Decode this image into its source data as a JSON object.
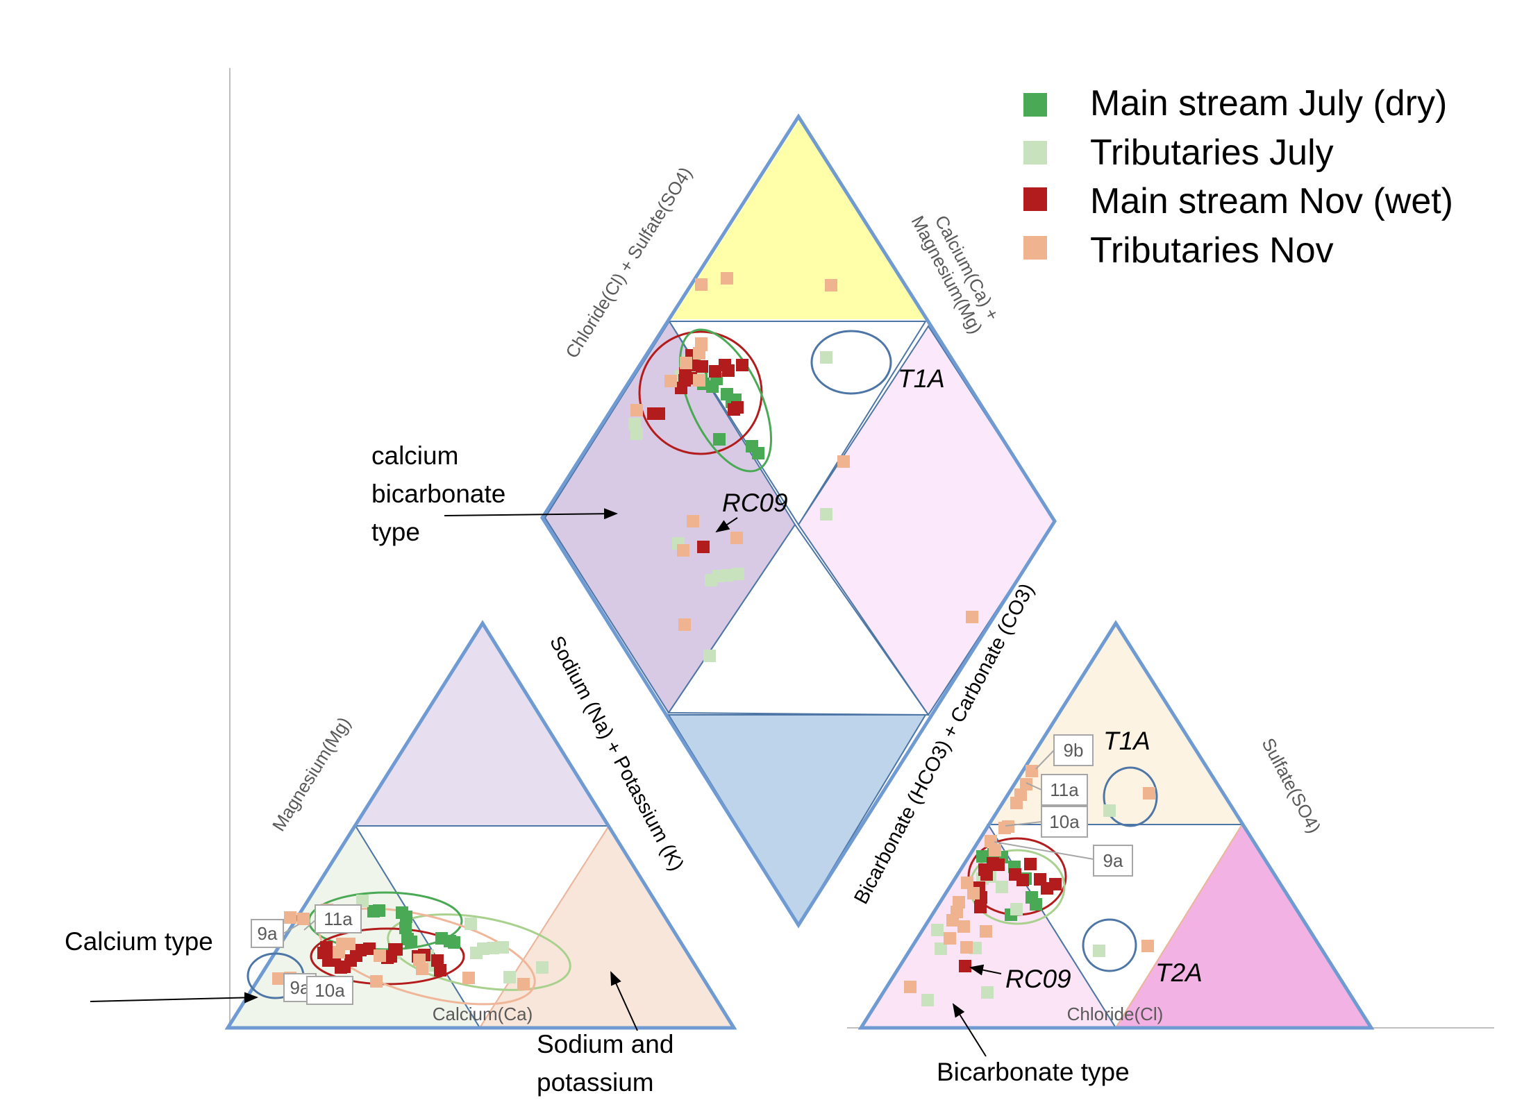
{
  "chart_data": {
    "type": "scatter",
    "title": "",
    "legend": {
      "position": "top-right",
      "items": [
        {
          "name": "Main stream July (dry)",
          "color": "#4aa955"
        },
        {
          "name": "Tributaries July",
          "color": "#c8e2bd"
        },
        {
          "name": "Main stream Nov (wet)",
          "color": "#b31c1c"
        },
        {
          "name": "Tributaries Nov",
          "color": "#efb38f"
        }
      ]
    },
    "axis_labels": {
      "diamond_left": "Chloride(Cl) + Sulfate(SO4)",
      "diamond_right_line1": "Calcium(Ca) +",
      "diamond_right_line2": "Magnesium(Mg)",
      "cation_left": "Magnesium(Mg)",
      "cation_right": "Sodium (Na) + Potassium (K)",
      "cation_bottom": "Calcium(Ca)",
      "anion_left": "Bicarbonate (HCO3) + Carbonate (CO3)",
      "anion_right": "Sulfate(SO4)",
      "anion_bottom": "Chloride(Cl)"
    },
    "annotations": {
      "calcium_bicarbonate": [
        "calcium",
        "bicarbonate",
        "type"
      ],
      "calcium_type": "Calcium type",
      "sodium_potassium": [
        "Sodium and",
        "potassium"
      ],
      "bicarbonate_type": "Bicarbonate type",
      "t1a": "T1A",
      "t2a": "T2A",
      "rc09": "RC09"
    },
    "site_labels": {
      "cation": [
        "9a",
        "11a",
        "9a",
        "10a"
      ],
      "anion": [
        "9b",
        "11a",
        "10a",
        "9a"
      ]
    },
    "series": [
      {
        "name": "Main stream July (dry)",
        "cation_points": [
          [
            538,
            1313
          ],
          [
            546,
            1312
          ],
          [
            579,
            1315
          ],
          [
            585,
            1321
          ],
          [
            584,
            1337
          ],
          [
            587,
            1353
          ],
          [
            592,
            1357
          ],
          [
            636,
            1352
          ],
          [
            648,
            1356
          ],
          [
            654,
            1358
          ]
        ],
        "anion_points": [
          [
            1415,
            1234
          ],
          [
            1431,
            1231
          ],
          [
            1443,
            1235
          ],
          [
            1461,
            1249
          ],
          [
            1477,
            1266
          ],
          [
            1486,
            1293
          ],
          [
            1492,
            1303
          ],
          [
            1456,
            1318
          ]
        ],
        "diamond_points": [
          [
            1000,
            526
          ],
          [
            1010,
            536
          ],
          [
            1013,
            553
          ],
          [
            1026,
            557
          ],
          [
            1032,
            546
          ],
          [
            1047,
            568
          ],
          [
            1054,
            579
          ],
          [
            1059,
            576
          ],
          [
            1083,
            643
          ],
          [
            1092,
            653
          ],
          [
            1036,
            633
          ]
        ]
      },
      {
        "name": "Tributaries July",
        "cation_points": [
          [
            522,
            1298
          ],
          [
            568,
            1373
          ],
          [
            616,
            1377
          ],
          [
            624,
            1391
          ],
          [
            678,
            1331
          ],
          [
            686,
            1373
          ],
          [
            696,
            1367
          ],
          [
            710,
            1366
          ],
          [
            724,
            1365
          ],
          [
            734,
            1408
          ],
          [
            781,
            1394
          ]
        ],
        "anion_points": [
          [
            1415,
            1266
          ],
          [
            1426,
            1263
          ],
          [
            1443,
            1278
          ],
          [
            1464,
            1310
          ],
          [
            1598,
            1168
          ],
          [
            1350,
            1340
          ],
          [
            1405,
            1366
          ],
          [
            1355,
            1367
          ],
          [
            1583,
            1370
          ],
          [
            1336,
            1441
          ],
          [
            1422,
            1430
          ]
        ],
        "diamond_points": [
          [
            993,
            520
          ],
          [
            990,
            534
          ],
          [
            1006,
            543
          ],
          [
            981,
            542
          ],
          [
            914,
            611
          ],
          [
            917,
            625
          ],
          [
            1190,
            515
          ],
          [
            1190,
            741
          ],
          [
            977,
            783
          ],
          [
            1024,
            836
          ],
          [
            1035,
            830
          ],
          [
            1048,
            829
          ],
          [
            1063,
            827
          ],
          [
            1022,
            945
          ]
        ]
      },
      {
        "name": "Main stream Nov (wet)",
        "cation_points": [
          [
            466,
            1373
          ],
          [
            470,
            1365
          ],
          [
            473,
            1384
          ],
          [
            482,
            1378
          ],
          [
            491,
            1394
          ],
          [
            496,
            1393
          ],
          [
            505,
            1384
          ],
          [
            513,
            1377
          ],
          [
            519,
            1369
          ],
          [
            532,
            1367
          ],
          [
            558,
            1380
          ],
          [
            563,
            1378
          ],
          [
            568,
            1368
          ],
          [
            571,
            1368
          ],
          [
            602,
            1378
          ],
          [
            611,
            1376
          ],
          [
            630,
            1384
          ],
          [
            634,
            1398
          ]
        ],
        "anion_points": [
          [
            1418,
            1253
          ],
          [
            1421,
            1260
          ],
          [
            1430,
            1244
          ],
          [
            1438,
            1246
          ],
          [
            1473,
            1268
          ],
          [
            1462,
            1260
          ],
          [
            1484,
            1245
          ],
          [
            1498,
            1267
          ],
          [
            1508,
            1280
          ],
          [
            1520,
            1274
          ],
          [
            1410,
            1279
          ],
          [
            1413,
            1293
          ],
          [
            1412,
            1307
          ],
          [
            1390,
            1392
          ]
        ],
        "diamond_points": [
          [
            996,
            512
          ],
          [
            997,
            526
          ],
          [
            987,
            538
          ],
          [
            981,
            559
          ],
          [
            986,
            548
          ],
          [
            995,
            545
          ],
          [
            1011,
            528
          ],
          [
            1030,
            535
          ],
          [
            1044,
            526
          ],
          [
            1049,
            534
          ],
          [
            1069,
            526
          ],
          [
            1057,
            590
          ],
          [
            1062,
            587
          ],
          [
            941,
            596
          ],
          [
            949,
            596
          ],
          [
            1013,
            788
          ]
        ]
      },
      {
        "name": "Tributaries Nov",
        "cation_points": [
          [
            418,
            1322
          ],
          [
            437,
            1324
          ],
          [
            401,
            1410
          ],
          [
            418,
            1409
          ],
          [
            435,
            1420
          ],
          [
            471,
            1311
          ],
          [
            479,
            1336
          ],
          [
            488,
            1372
          ],
          [
            493,
            1360
          ],
          [
            503,
            1360
          ],
          [
            542,
            1414
          ],
          [
            547,
            1377
          ],
          [
            604,
            1383
          ],
          [
            608,
            1396
          ],
          [
            675,
            1409
          ],
          [
            754,
            1418
          ]
        ],
        "anion_points": [
          [
            1486,
            1111
          ],
          [
            1478,
            1130
          ],
          [
            1470,
            1145
          ],
          [
            1464,
            1157
          ],
          [
            1452,
            1191
          ],
          [
            1447,
            1193
          ],
          [
            1427,
            1212
          ],
          [
            1433,
            1225
          ],
          [
            1393,
            1272
          ],
          [
            1402,
            1287
          ],
          [
            1381,
            1300
          ],
          [
            1378,
            1314
          ],
          [
            1372,
            1326
          ],
          [
            1388,
            1335
          ],
          [
            1420,
            1342
          ],
          [
            1368,
            1352
          ],
          [
            1392,
            1365
          ],
          [
            1311,
            1422
          ],
          [
            1655,
            1143
          ],
          [
            1653,
            1363
          ]
        ],
        "diamond_points": [
          [
            1010,
            497
          ],
          [
            1007,
            509
          ],
          [
            988,
            523
          ],
          [
            1007,
            548
          ],
          [
            966,
            549
          ],
          [
            917,
            591
          ],
          [
            1010,
            495
          ],
          [
            1047,
            401
          ],
          [
            1010,
            410
          ],
          [
            1197,
            411
          ],
          [
            1215,
            665
          ],
          [
            998,
            751
          ],
          [
            1061,
            775
          ],
          [
            984,
            793
          ],
          [
            986,
            900
          ],
          [
            1400,
            889
          ]
        ]
      }
    ]
  }
}
